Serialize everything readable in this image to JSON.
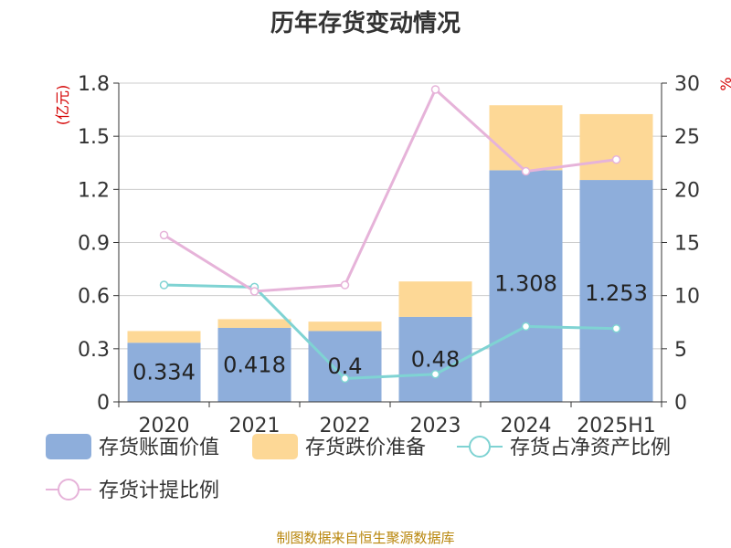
{
  "chart_data": {
    "type": "bar",
    "title": "历年存货变动情况",
    "categories": [
      "2020",
      "2021",
      "2022",
      "2023",
      "2024",
      "2025H1"
    ],
    "ylabel_left": "(亿元)",
    "ylim_left": [
      0,
      1.8
    ],
    "yticks_left": [
      "0",
      "0.3",
      "0.6",
      "0.9",
      "1.2",
      "1.5",
      "1.8"
    ],
    "ylabel_right": "%",
    "ylim_right": [
      0,
      30
    ],
    "yticks_right": [
      "0",
      "5",
      "10",
      "15",
      "20",
      "25",
      "30"
    ],
    "grid": true,
    "legend_position": "bottom",
    "stacked": true,
    "series": [
      {
        "name": "存货账面价值",
        "type": "bar",
        "axis": "left",
        "color": "#8eaedb",
        "values": [
          0.334,
          0.418,
          0.4,
          0.48,
          1.308,
          1.253
        ],
        "labels": [
          "0.334",
          "0.418",
          "0.4",
          "0.48",
          "1.308",
          "1.253"
        ]
      },
      {
        "name": "存货跌价准备",
        "type": "bar",
        "axis": "left",
        "color": "#fdd896",
        "values": [
          0.066,
          0.049,
          0.053,
          0.2,
          0.367,
          0.372
        ]
      },
      {
        "name": "存货占净资产比例",
        "type": "line",
        "axis": "right",
        "color": "#7fd3d3",
        "values": [
          11.0,
          10.8,
          2.2,
          2.6,
          7.1,
          6.9
        ]
      },
      {
        "name": "存货计提比例",
        "type": "line",
        "axis": "right",
        "color": "#e6b3d9",
        "values": [
          15.7,
          10.4,
          11.0,
          29.4,
          21.7,
          22.8
        ]
      }
    ]
  },
  "footer": {
    "source": "制图数据来自恒生聚源数据库"
  }
}
